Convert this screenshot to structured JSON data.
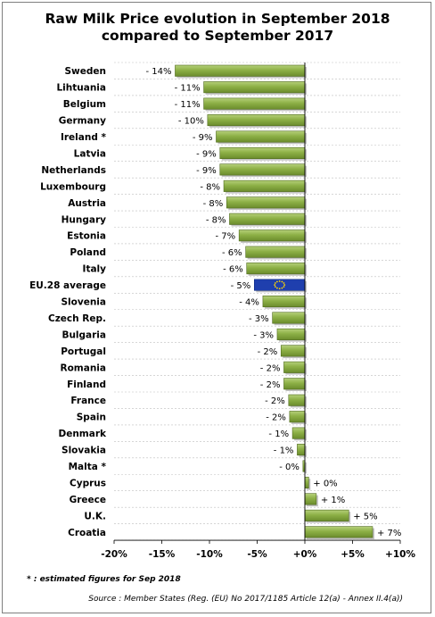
{
  "chart_data": {
    "type": "bar",
    "orientation": "horizontal",
    "title_line1": "Raw Milk Price evolution in September 2018",
    "title_line2": "compared to September 2017",
    "categories": [
      "Sweden",
      "Lihtuania",
      "Belgium",
      "Germany",
      "Ireland *",
      "Latvia",
      "Netherlands",
      "Luxembourg",
      "Austria",
      "Hungary",
      "Estonia",
      "Poland",
      "Italy",
      "EU.28 average",
      "Slovenia",
      "Czech Rep.",
      "Bulgaria",
      "Portugal",
      "Romania",
      "Finland",
      "France",
      "Spain",
      "Denmark",
      "Slovakia",
      "Malta *",
      "Cyprus",
      "Greece",
      "U.K.",
      "Croatia"
    ],
    "values": [
      -13.6,
      -10.6,
      -10.6,
      -10.2,
      -9.3,
      -8.9,
      -8.9,
      -8.5,
      -8.2,
      -7.9,
      -6.9,
      -6.2,
      -6.1,
      -5.3,
      -4.4,
      -3.4,
      -2.9,
      -2.5,
      -2.2,
      -2.2,
      -1.7,
      -1.6,
      -1.3,
      -0.8,
      -0.2,
      0.4,
      1.2,
      4.6,
      7.1
    ],
    "value_labels": [
      "- 14%",
      "- 11%",
      "- 11%",
      "- 10%",
      "- 9%",
      "- 9%",
      "- 9%",
      "- 8%",
      "- 8%",
      "- 8%",
      "- 7%",
      "- 6%",
      "- 6%",
      "- 5%",
      "- 4%",
      "- 3%",
      "- 3%",
      "- 2%",
      "- 2%",
      "- 2%",
      "- 2%",
      "- 2%",
      "- 1%",
      "- 1%",
      "- 0%",
      "+ 0%",
      "+ 1%",
      "+ 5%",
      "+ 7%"
    ],
    "highlight_category": "EU.28 average",
    "xlim": [
      -20,
      10
    ],
    "xticks": [
      -20,
      -15,
      -10,
      -5,
      0,
      5,
      10
    ],
    "xtick_labels": [
      "-20%",
      "-15%",
      "-10%",
      "-5%",
      "+0%",
      "+5%",
      "+10%"
    ],
    "grid": true,
    "colors": {
      "bar": "#8db046",
      "bar_dark": "#4f6a1d",
      "highlight": "#1f3fae",
      "highlight_stars": "#ffd700"
    }
  },
  "footnote": "* : estimated figures for Sep 2018",
  "source": "Source : Member States (Reg. (EU) No 2017/1185 Article 12(a) - Annex II.4(a))"
}
